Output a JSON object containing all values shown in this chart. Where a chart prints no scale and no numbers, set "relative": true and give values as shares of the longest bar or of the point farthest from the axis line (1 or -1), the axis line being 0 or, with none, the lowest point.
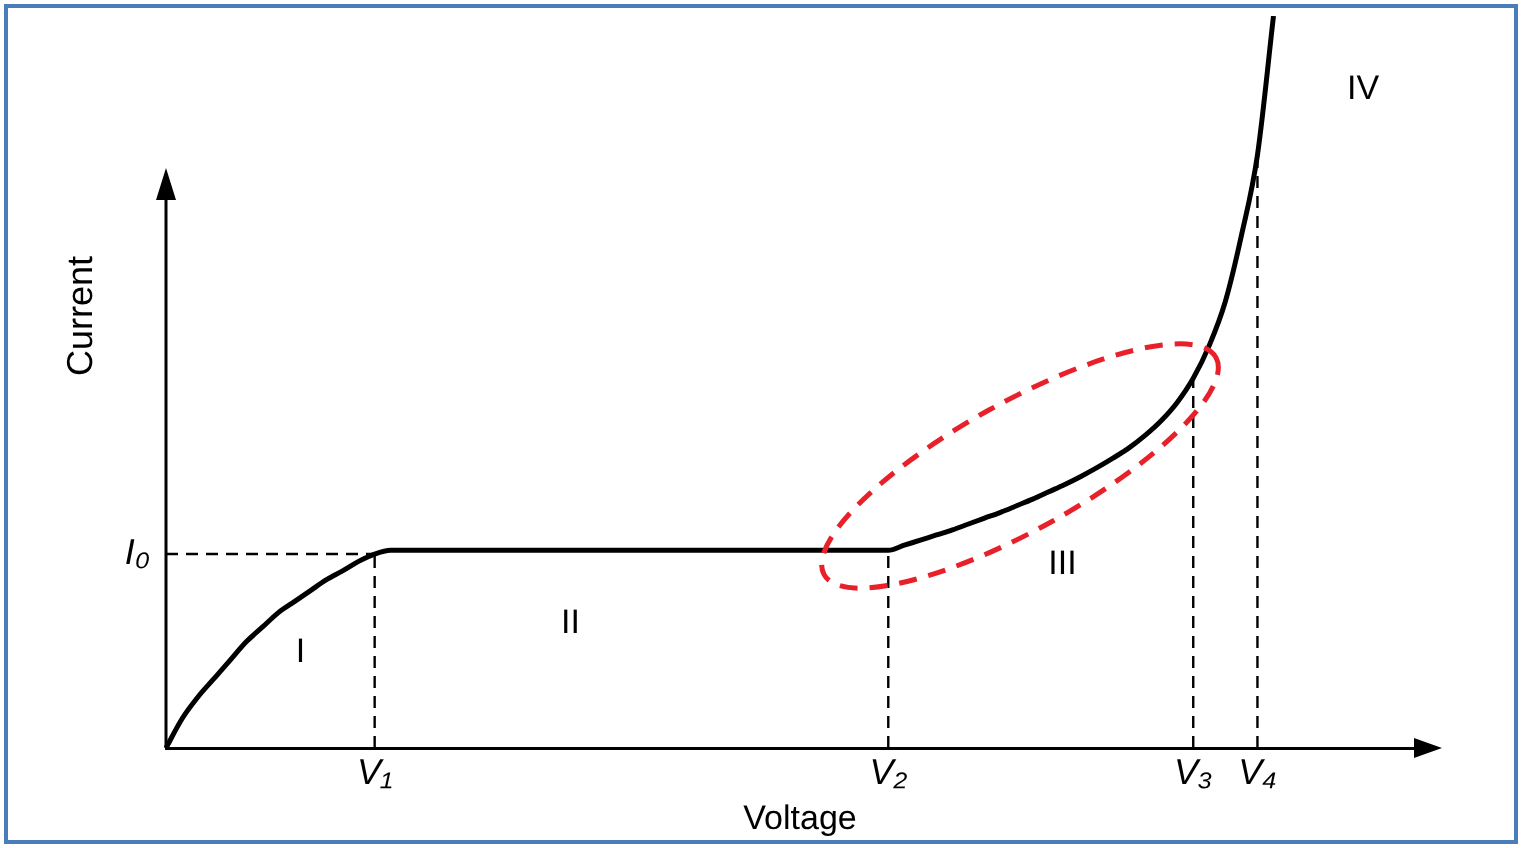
{
  "chart_data": {
    "type": "line",
    "relative": true,
    "xlabel": "Voltage",
    "ylabel": "Current",
    "categories": [
      null,
      null,
      null,
      null,
      null,
      null,
      null,
      null,
      null,
      null,
      null,
      null,
      null,
      "V₁",
      null,
      null,
      null,
      null,
      null,
      null,
      null,
      null,
      null,
      null,
      null,
      null,
      null,
      null,
      null,
      null,
      null,
      null,
      null,
      null,
      null,
      null,
      null,
      null,
      null,
      null,
      null,
      null,
      null,
      null,
      null,
      "V₂",
      null,
      null,
      null,
      null,
      null,
      null,
      null,
      null,
      null,
      null,
      null,
      null,
      null,
      null,
      null,
      null,
      null,
      null,
      "V₃",
      null,
      null,
      null,
      "V₄",
      null,
      null,
      null,
      null,
      null,
      null,
      null,
      null,
      null,
      null,
      null
    ],
    "series": [
      {
        "color": "#000000",
        "values": [
          0,
          0.04,
          0.07,
          0.095,
          0.12,
          0.145,
          0.165,
          0.185,
          0.2,
          0.215,
          0.23,
          0.242,
          0.255,
          0.265,
          0.27,
          0.27,
          0.27,
          0.27,
          0.27,
          0.27,
          0.27,
          0.27,
          0.27,
          0.27,
          0.27,
          0.27,
          0.27,
          0.27,
          0.27,
          0.27,
          0.27,
          0.27,
          0.27,
          0.27,
          0.27,
          0.27,
          0.27,
          0.27,
          0.27,
          0.27,
          0.27,
          0.27,
          0.27,
          0.27,
          0.27,
          0.27,
          0.277,
          0.284,
          0.291,
          0.298,
          0.306,
          0.314,
          0.322,
          0.331,
          0.34,
          0.35,
          0.36,
          0.371,
          0.383,
          0.396,
          0.41,
          0.427,
          0.447,
          0.472,
          0.505,
          0.55,
          0.61,
          0.7,
          0.81,
          1.0,
          null,
          null,
          null,
          null,
          null,
          null,
          null,
          null,
          null,
          null
        ]
      }
    ],
    "ref_lines": [
      {
        "axis": "y",
        "value": 0.265,
        "label": "I₀",
        "line_style": "dashed"
      },
      {
        "axis": "x",
        "value": "V₁",
        "line_style": "dashed"
      },
      {
        "axis": "x",
        "value": "V₂",
        "line_style": "dashed"
      },
      {
        "axis": "x",
        "value": "V₃",
        "line_style": "dashed"
      },
      {
        "axis": "x",
        "value": "V₄",
        "line_style": "dashed"
      }
    ],
    "annotations": [
      "I",
      "II",
      "III",
      "IV"
    ],
    "grid": false,
    "legend": false,
    "marker": "none",
    "line_style": "solid"
  }
}
